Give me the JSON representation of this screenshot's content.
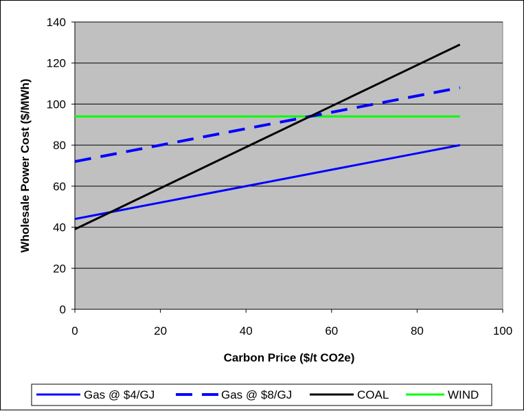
{
  "chart_data": {
    "type": "line",
    "xlabel": "Carbon Price ($/t CO2e)",
    "ylabel": "Wholesale Power Cost ($/MWh)",
    "xlim": [
      0,
      100
    ],
    "ylim": [
      0,
      140
    ],
    "xticks": [
      0,
      20,
      40,
      60,
      80,
      100
    ],
    "yticks": [
      0,
      20,
      40,
      60,
      80,
      100,
      120,
      140
    ],
    "grid": "horizontal",
    "legend_position": "bottom",
    "colors": {
      "plot_background": "#c0c0c0",
      "gas4": "#0000ff",
      "gas8": "#0000ff",
      "coal": "#000000",
      "wind": "#00ff00"
    },
    "series": [
      {
        "name": "Gas @ $4/GJ",
        "style": "solid",
        "color": "#0000ff",
        "x": [
          0,
          90
        ],
        "y": [
          44,
          80
        ]
      },
      {
        "name": "Gas @ $8/GJ",
        "style": "dashed",
        "color": "#0000ff",
        "x": [
          0,
          90
        ],
        "y": [
          72,
          108
        ]
      },
      {
        "name": "COAL",
        "style": "solid",
        "color": "#000000",
        "x": [
          0,
          90
        ],
        "y": [
          39,
          129
        ]
      },
      {
        "name": "WIND",
        "style": "solid",
        "color": "#00ff00",
        "x": [
          0,
          90
        ],
        "y": [
          94,
          94
        ]
      }
    ]
  }
}
